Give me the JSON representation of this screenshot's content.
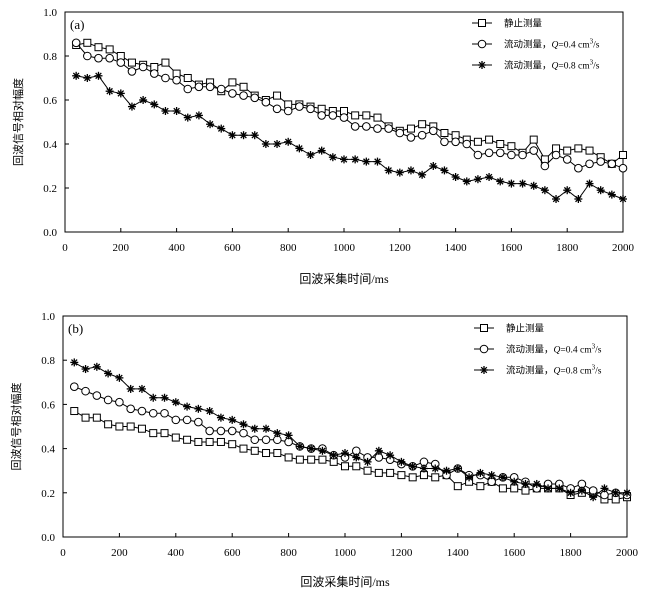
{
  "chart_data": [
    {
      "type": "line",
      "panel_label": "(a)",
      "xlabel": "回波采集时间/ms",
      "ylabel": "回波信号相对幅度",
      "xlim": [
        0,
        2000
      ],
      "ylim": [
        0.0,
        1.0
      ],
      "xticks": [
        "0",
        "200",
        "400",
        "600",
        "800",
        "1000",
        "1200",
        "1400",
        "1600",
        "1800",
        "2000"
      ],
      "yticks": [
        "0.0",
        "0.2",
        "0.4",
        "0.6",
        "0.8",
        "1.0"
      ],
      "x": [
        40,
        80,
        120,
        160,
        200,
        240,
        280,
        320,
        360,
        400,
        440,
        480,
        520,
        560,
        600,
        640,
        680,
        720,
        760,
        800,
        840,
        880,
        920,
        960,
        1000,
        1040,
        1080,
        1120,
        1160,
        1200,
        1240,
        1280,
        1320,
        1360,
        1400,
        1440,
        1480,
        1520,
        1560,
        1600,
        1640,
        1680,
        1720,
        1760,
        1800,
        1840,
        1880,
        1920,
        1960,
        2000
      ],
      "series": [
        {
          "name": "静止测量",
          "legend_prefix": "静止测量",
          "marker": "square",
          "values": [
            0.85,
            0.86,
            0.84,
            0.83,
            0.8,
            0.77,
            0.76,
            0.75,
            0.77,
            0.72,
            0.7,
            0.67,
            0.68,
            0.64,
            0.68,
            0.66,
            0.62,
            0.6,
            0.62,
            0.58,
            0.58,
            0.57,
            0.56,
            0.55,
            0.55,
            0.53,
            0.53,
            0.52,
            0.48,
            0.46,
            0.47,
            0.49,
            0.48,
            0.45,
            0.44,
            0.42,
            0.41,
            0.42,
            0.4,
            0.39,
            0.36,
            0.42,
            0.33,
            0.38,
            0.37,
            0.38,
            0.37,
            0.34,
            0.31,
            0.35
          ]
        },
        {
          "name": "流动测量，Q=0.4 cm³/s",
          "legend_prefix": "流动测量，",
          "legend_q": "Q",
          "legend_val": "=0.4 cm",
          "legend_sup": "3",
          "legend_unit": "/s",
          "marker": "circle",
          "values": [
            0.86,
            0.8,
            0.79,
            0.79,
            0.77,
            0.73,
            0.75,
            0.72,
            0.7,
            0.69,
            0.65,
            0.66,
            0.66,
            0.65,
            0.63,
            0.62,
            0.61,
            0.59,
            0.56,
            0.55,
            0.57,
            0.56,
            0.53,
            0.53,
            0.52,
            0.48,
            0.48,
            0.47,
            0.47,
            0.45,
            0.43,
            0.44,
            0.46,
            0.41,
            0.41,
            0.4,
            0.35,
            0.36,
            0.36,
            0.35,
            0.35,
            0.37,
            0.3,
            0.35,
            0.33,
            0.29,
            0.31,
            0.32,
            0.31,
            0.29
          ]
        },
        {
          "name": "流动测量，Q=0.8 cm³/s",
          "legend_prefix": "流动测量，",
          "legend_q": "Q",
          "legend_val": "=0.8 cm",
          "legend_sup": "3",
          "legend_unit": "/s",
          "marker": "star",
          "values": [
            0.71,
            0.7,
            0.71,
            0.64,
            0.63,
            0.57,
            0.6,
            0.58,
            0.55,
            0.55,
            0.52,
            0.53,
            0.49,
            0.47,
            0.44,
            0.44,
            0.44,
            0.4,
            0.4,
            0.41,
            0.38,
            0.35,
            0.37,
            0.34,
            0.33,
            0.33,
            0.32,
            0.32,
            0.28,
            0.27,
            0.28,
            0.26,
            0.3,
            0.28,
            0.25,
            0.23,
            0.24,
            0.25,
            0.23,
            0.22,
            0.22,
            0.21,
            0.19,
            0.15,
            0.19,
            0.15,
            0.22,
            0.19,
            0.17,
            0.15
          ]
        }
      ]
    },
    {
      "type": "line",
      "panel_label": "(b)",
      "xlabel": "回波采集时间/ms",
      "ylabel": "回波信号相对幅度",
      "xlim": [
        0,
        2000
      ],
      "ylim": [
        0.0,
        1.0
      ],
      "xticks": [
        "0",
        "200",
        "400",
        "600",
        "800",
        "1000",
        "1200",
        "1400",
        "1600",
        "1800",
        "2000"
      ],
      "yticks": [
        "0.0",
        "0.2",
        "0.4",
        "0.6",
        "0.8",
        "1.0"
      ],
      "x": [
        40,
        80,
        120,
        160,
        200,
        240,
        280,
        320,
        360,
        400,
        440,
        480,
        520,
        560,
        600,
        640,
        680,
        720,
        760,
        800,
        840,
        880,
        920,
        960,
        1000,
        1040,
        1080,
        1120,
        1160,
        1200,
        1240,
        1280,
        1320,
        1360,
        1400,
        1440,
        1480,
        1520,
        1560,
        1600,
        1640,
        1680,
        1720,
        1760,
        1800,
        1840,
        1880,
        1920,
        1960,
        2000
      ],
      "series": [
        {
          "name": "静止测量",
          "legend_prefix": "静止测量",
          "marker": "square",
          "values": [
            0.57,
            0.54,
            0.54,
            0.51,
            0.5,
            0.5,
            0.49,
            0.47,
            0.47,
            0.45,
            0.44,
            0.43,
            0.43,
            0.43,
            0.42,
            0.4,
            0.39,
            0.38,
            0.38,
            0.36,
            0.35,
            0.35,
            0.35,
            0.34,
            0.32,
            0.32,
            0.3,
            0.29,
            0.29,
            0.28,
            0.27,
            0.28,
            0.27,
            0.28,
            0.23,
            0.25,
            0.23,
            0.25,
            0.22,
            0.22,
            0.21,
            0.22,
            0.22,
            0.22,
            0.19,
            0.2,
            0.2,
            0.17,
            0.17,
            0.18
          ]
        },
        {
          "name": "流动测量，Q=0.4 cm³/s",
          "legend_prefix": "流动测量，",
          "legend_q": "Q",
          "legend_val": "=0.4 cm",
          "legend_sup": "3",
          "legend_unit": "/s",
          "marker": "circle",
          "values": [
            0.68,
            0.66,
            0.64,
            0.62,
            0.61,
            0.58,
            0.57,
            0.56,
            0.56,
            0.53,
            0.53,
            0.52,
            0.48,
            0.48,
            0.48,
            0.47,
            0.44,
            0.44,
            0.44,
            0.43,
            0.41,
            0.4,
            0.4,
            0.37,
            0.36,
            0.39,
            0.36,
            0.36,
            0.35,
            0.33,
            0.32,
            0.34,
            0.33,
            0.28,
            0.31,
            0.28,
            0.28,
            0.25,
            0.27,
            0.27,
            0.25,
            0.22,
            0.24,
            0.24,
            0.22,
            0.24,
            0.21,
            0.19,
            0.2,
            0.19
          ]
        },
        {
          "name": "流动测量，Q=0.8 cm³/s",
          "legend_prefix": "流动测量，",
          "legend_q": "Q",
          "legend_val": "=0.8 cm",
          "legend_sup": "3",
          "legend_unit": "/s",
          "marker": "star",
          "values": [
            0.79,
            0.76,
            0.77,
            0.74,
            0.72,
            0.67,
            0.67,
            0.63,
            0.63,
            0.61,
            0.59,
            0.58,
            0.57,
            0.54,
            0.53,
            0.51,
            0.49,
            0.49,
            0.47,
            0.46,
            0.41,
            0.4,
            0.39,
            0.37,
            0.38,
            0.36,
            0.34,
            0.39,
            0.37,
            0.34,
            0.32,
            0.31,
            0.31,
            0.3,
            0.31,
            0.27,
            0.29,
            0.28,
            0.27,
            0.25,
            0.24,
            0.24,
            0.22,
            0.22,
            0.2,
            0.21,
            0.18,
            0.22,
            0.2,
            0.2
          ]
        }
      ]
    }
  ]
}
